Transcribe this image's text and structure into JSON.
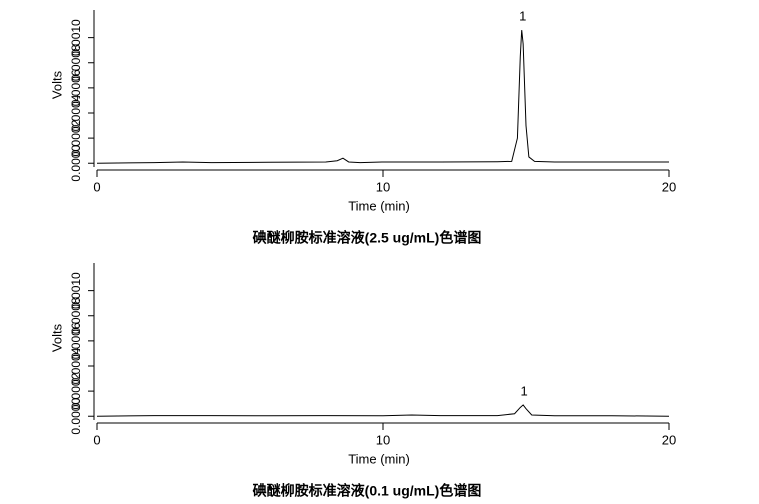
{
  "chart_data": [
    {
      "type": "line",
      "title": "碘醚柳胺标准溶液(2.5 ug/mL)色谱图",
      "x_label": "Time (min)",
      "y_label": "Volts",
      "xlim": [
        0,
        20
      ],
      "xticks": [
        0,
        10,
        20
      ],
      "ylim": [
        -3e-05,
        0.00122
      ],
      "yticks": [
        {
          "value": 0,
          "label": "0.0000"
        },
        {
          "value": 0.0002,
          "label": "0.0002"
        },
        {
          "value": 0.0004,
          "label": "0.0004"
        },
        {
          "value": 0.0006,
          "label": "0.0006"
        },
        {
          "value": 0.0008,
          "label": "0.0008"
        },
        {
          "value": 0.001,
          "label": "0.0010"
        }
      ],
      "x": [
        0,
        2,
        3,
        4,
        6,
        8,
        8.4,
        8.6,
        8.8,
        9.2,
        10,
        12,
        14,
        14.5,
        14.7,
        14.8,
        14.85,
        14.9,
        15.0,
        15.1,
        15.3,
        16,
        18,
        20
      ],
      "series": [
        {
          "name": "Volts",
          "color": "#000000",
          "values": [
            0,
            5e-06,
            1e-05,
            5e-06,
            8e-06,
            1e-05,
            2e-05,
            4e-05,
            1e-05,
            5e-06,
            1e-05,
            1e-05,
            1.2e-05,
            1.5e-05,
            0.0002,
            0.00085,
            0.00106,
            0.00095,
            0.0003,
            5e-05,
            1.5e-05,
            1e-05,
            1e-05,
            1e-05
          ]
        }
      ],
      "annotations": [
        {
          "text": "1",
          "x": 14.85
        }
      ]
    },
    {
      "type": "line",
      "title": "碘醚柳胺标准溶液(0.1 ug/mL)色谱图",
      "x_label": "Time (min)",
      "y_label": "Volts",
      "xlim": [
        0,
        20
      ],
      "xticks": [
        0,
        10,
        20
      ],
      "ylim": [
        -3e-05,
        0.00122
      ],
      "yticks": [
        {
          "value": 0,
          "label": "0.0000"
        },
        {
          "value": 0.0002,
          "label": "0.0002"
        },
        {
          "value": 0.0004,
          "label": "0.0004"
        },
        {
          "value": 0.0006,
          "label": "0.0006"
        },
        {
          "value": 0.0008,
          "label": "0.0008"
        },
        {
          "value": 0.001,
          "label": "0.0010"
        }
      ],
      "x": [
        0,
        2,
        4,
        6,
        8,
        10,
        11,
        12,
        14,
        14.6,
        14.8,
        14.9,
        15.0,
        15.2,
        16,
        18,
        20
      ],
      "series": [
        {
          "name": "Volts",
          "color": "#000000",
          "values": [
            0,
            5e-06,
            5e-06,
            4e-06,
            5e-06,
            4e-06,
            1e-05,
            5e-06,
            5e-06,
            2e-05,
            7e-05,
            9e-05,
            6e-05,
            1e-05,
            4e-06,
            4e-06,
            0
          ]
        }
      ],
      "annotations": [
        {
          "text": "1",
          "x": 14.9
        }
      ]
    }
  ]
}
